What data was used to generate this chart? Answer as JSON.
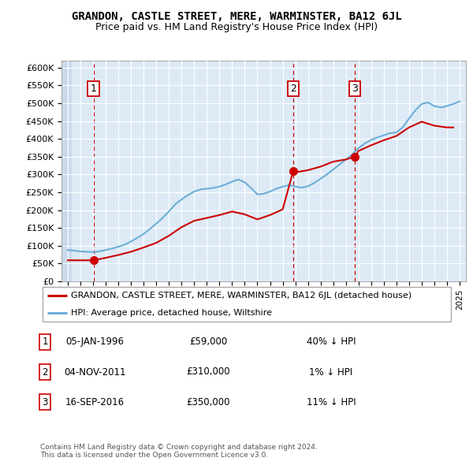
{
  "title": "GRANDON, CASTLE STREET, MERE, WARMINSTER, BA12 6JL",
  "subtitle": "Price paid vs. HM Land Registry's House Price Index (HPI)",
  "sales": [
    {
      "date": 1996.03,
      "price": 59000,
      "label": "1"
    },
    {
      "date": 2011.84,
      "price": 310000,
      "label": "2"
    },
    {
      "date": 2016.71,
      "price": 350000,
      "label": "3"
    }
  ],
  "sale_details": [
    {
      "num": "1",
      "date": "05-JAN-1996",
      "price": "£59,000",
      "hpi": "40% ↓ HPI"
    },
    {
      "num": "2",
      "date": "04-NOV-2011",
      "price": "£310,000",
      "hpi": "1% ↓ HPI"
    },
    {
      "num": "3",
      "date": "16-SEP-2016",
      "price": "£350,000",
      "hpi": "11% ↓ HPI"
    }
  ],
  "legend_house": "GRANDON, CASTLE STREET, MERE, WARMINSTER, BA12 6JL (detached house)",
  "legend_hpi": "HPI: Average price, detached house, Wiltshire",
  "footer": "Contains HM Land Registry data © Crown copyright and database right 2024.\nThis data is licensed under the Open Government Licence v3.0.",
  "hpi_color": "#6baed6",
  "sale_color": "#cc0000",
  "dashed_color": "#cc0000",
  "background_plot": "#ddeaf6",
  "ylim": [
    0,
    620000
  ],
  "xlim_start": 1993.5,
  "xlim_end": 2025.5,
  "yticks": [
    0,
    50000,
    100000,
    150000,
    200000,
    250000,
    300000,
    350000,
    400000,
    450000,
    500000,
    550000,
    600000
  ],
  "ytick_labels": [
    "£0",
    "£50K",
    "£100K",
    "£150K",
    "£200K",
    "£250K",
    "£300K",
    "£350K",
    "£400K",
    "£450K",
    "£500K",
    "£550K",
    "£600K"
  ],
  "hpi_x": [
    1994,
    1994.5,
    1995,
    1995.5,
    1996,
    1996.5,
    1997,
    1997.5,
    1998,
    1998.5,
    1999,
    1999.5,
    2000,
    2000.5,
    2001,
    2001.5,
    2002,
    2002.5,
    2003,
    2003.5,
    2004,
    2004.5,
    2005,
    2005.5,
    2006,
    2006.5,
    2007,
    2007.5,
    2008,
    2008.5,
    2009,
    2009.5,
    2010,
    2010.5,
    2011,
    2011.5,
    2012,
    2012.5,
    2013,
    2013.5,
    2014,
    2014.5,
    2015,
    2015.5,
    2016,
    2016.5,
    2017,
    2017.5,
    2018,
    2018.5,
    2019,
    2019.5,
    2020,
    2020.5,
    2021,
    2021.5,
    2022,
    2022.5,
    2023,
    2023.5,
    2024,
    2024.5,
    2025
  ],
  "hpi_y": [
    88000,
    86000,
    84000,
    83000,
    82000,
    84000,
    88000,
    92000,
    97000,
    103000,
    112000,
    122000,
    133000,
    147000,
    162000,
    178000,
    196000,
    216000,
    230000,
    242000,
    252000,
    258000,
    260000,
    262000,
    266000,
    272000,
    280000,
    286000,
    278000,
    262000,
    244000,
    246000,
    252000,
    260000,
    266000,
    270000,
    266000,
    263000,
    267000,
    276000,
    288000,
    300000,
    314000,
    328000,
    342000,
    356000,
    374000,
    387000,
    397000,
    404000,
    410000,
    416000,
    418000,
    432000,
    457000,
    480000,
    498000,
    502000,
    492000,
    488000,
    492000,
    498000,
    505000
  ],
  "red_x": [
    1994.0,
    1995.0,
    1996.03,
    1997,
    1998,
    1999,
    2000,
    2001,
    2002,
    2003,
    2004,
    2005,
    2006,
    2007,
    2008,
    2009,
    2010,
    2011.0,
    2011.84,
    2012,
    2013,
    2014,
    2015,
    2016.0,
    2016.71,
    2017,
    2018,
    2019,
    2020,
    2021,
    2022,
    2023,
    2024,
    2024.5
  ],
  "red_y": [
    59000,
    59000,
    59000,
    66000,
    74000,
    83000,
    95000,
    108000,
    128000,
    152000,
    170000,
    178000,
    186000,
    196000,
    188000,
    174000,
    186000,
    202000,
    310000,
    306000,
    312000,
    322000,
    336000,
    342000,
    350000,
    366000,
    382000,
    396000,
    408000,
    432000,
    448000,
    437000,
    432000,
    432000
  ]
}
